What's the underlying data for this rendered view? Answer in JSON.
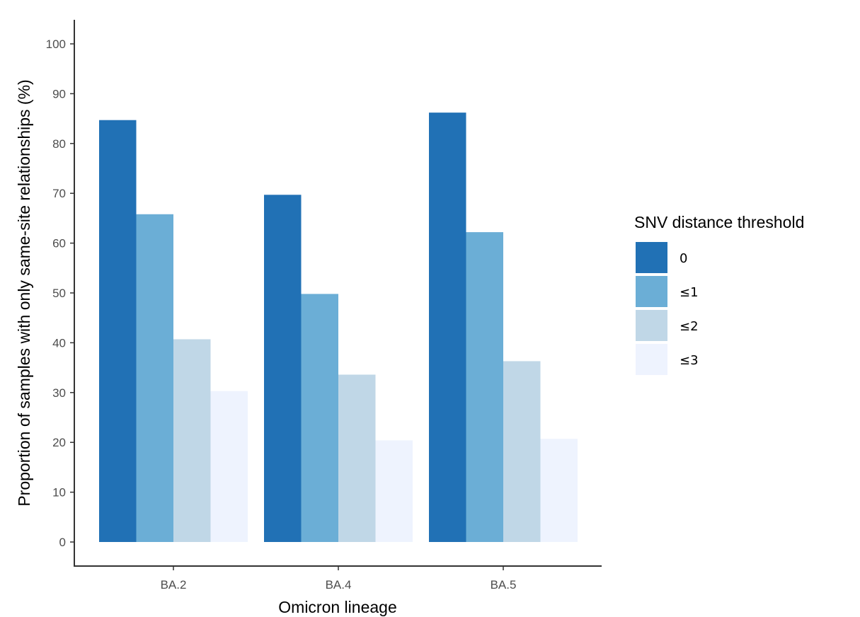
{
  "chart_data": {
    "type": "bar",
    "xlabel": "Omicron lineage",
    "ylabel": "Proportion of samples with only same-site relationships (%)",
    "categories": [
      "BA.2",
      "BA.4",
      "BA.5"
    ],
    "ylim": [
      0,
      100
    ],
    "yticks": [
      0,
      10,
      20,
      30,
      40,
      50,
      60,
      70,
      80,
      90,
      100
    ],
    "grid": false,
    "legend": {
      "title": "SNV distance threshold",
      "position": "right"
    },
    "series": [
      {
        "name": "0",
        "color": "#2171b5",
        "values": [
          84.7,
          69.7,
          86.2
        ]
      },
      {
        "name": "≤1",
        "color": "#6baed6",
        "values": [
          65.8,
          49.8,
          62.2
        ]
      },
      {
        "name": "≤2",
        "color": "#c0d7e7",
        "values": [
          40.7,
          33.6,
          36.3
        ]
      },
      {
        "name": "≤3",
        "color": "#eef3fe",
        "values": [
          30.3,
          20.4,
          20.7
        ]
      }
    ]
  }
}
